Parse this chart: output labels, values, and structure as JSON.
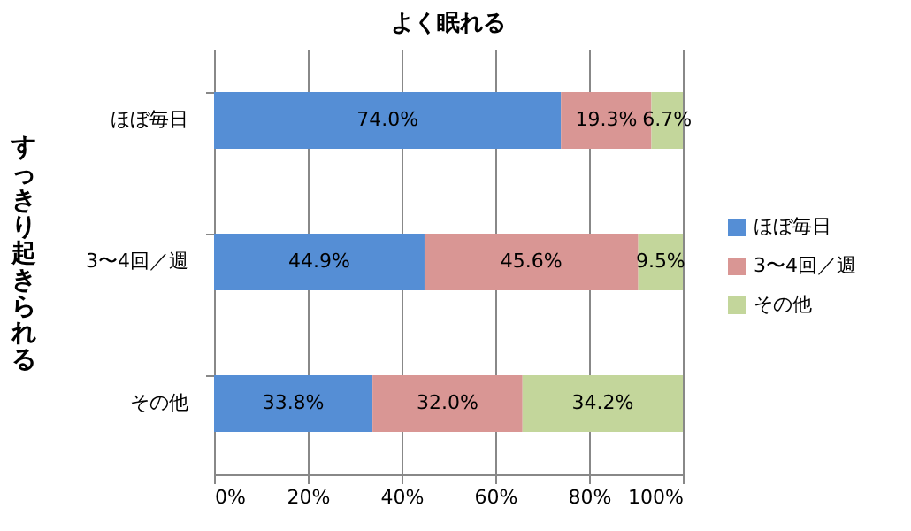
{
  "chart_data": {
    "type": "bar",
    "orientation": "horizontal",
    "stacked": true,
    "title": "よく眠れる",
    "ylabel": "すっきり起きられる",
    "categories": [
      "ほぼ毎日",
      "3〜4回／週",
      "その他"
    ],
    "series": [
      {
        "name": "ほぼ毎日",
        "color": "#558ed5",
        "values": [
          74.0,
          44.9,
          33.8
        ],
        "value_labels": [
          "74.0%",
          "44.9%",
          "33.8%"
        ]
      },
      {
        "name": "3〜4回／週",
        "color": "#d99694",
        "values": [
          19.3,
          45.6,
          32.0
        ],
        "value_labels": [
          "19.3%",
          "45.6%",
          "32.0%"
        ]
      },
      {
        "name": "その他",
        "color": "#c3d69b",
        "values": [
          6.7,
          9.5,
          34.2
        ],
        "value_labels": [
          "6.7%",
          "9.5%",
          "34.2%"
        ]
      }
    ],
    "xlim": [
      0,
      100
    ],
    "xticks": [
      {
        "value": 0,
        "label": "0%"
      },
      {
        "value": 20,
        "label": "20%"
      },
      {
        "value": 40,
        "label": "40%"
      },
      {
        "value": 60,
        "label": "60%"
      },
      {
        "value": 80,
        "label": "80%"
      },
      {
        "value": 100,
        "label": "100%"
      }
    ],
    "grid": "x",
    "legend": "right"
  }
}
